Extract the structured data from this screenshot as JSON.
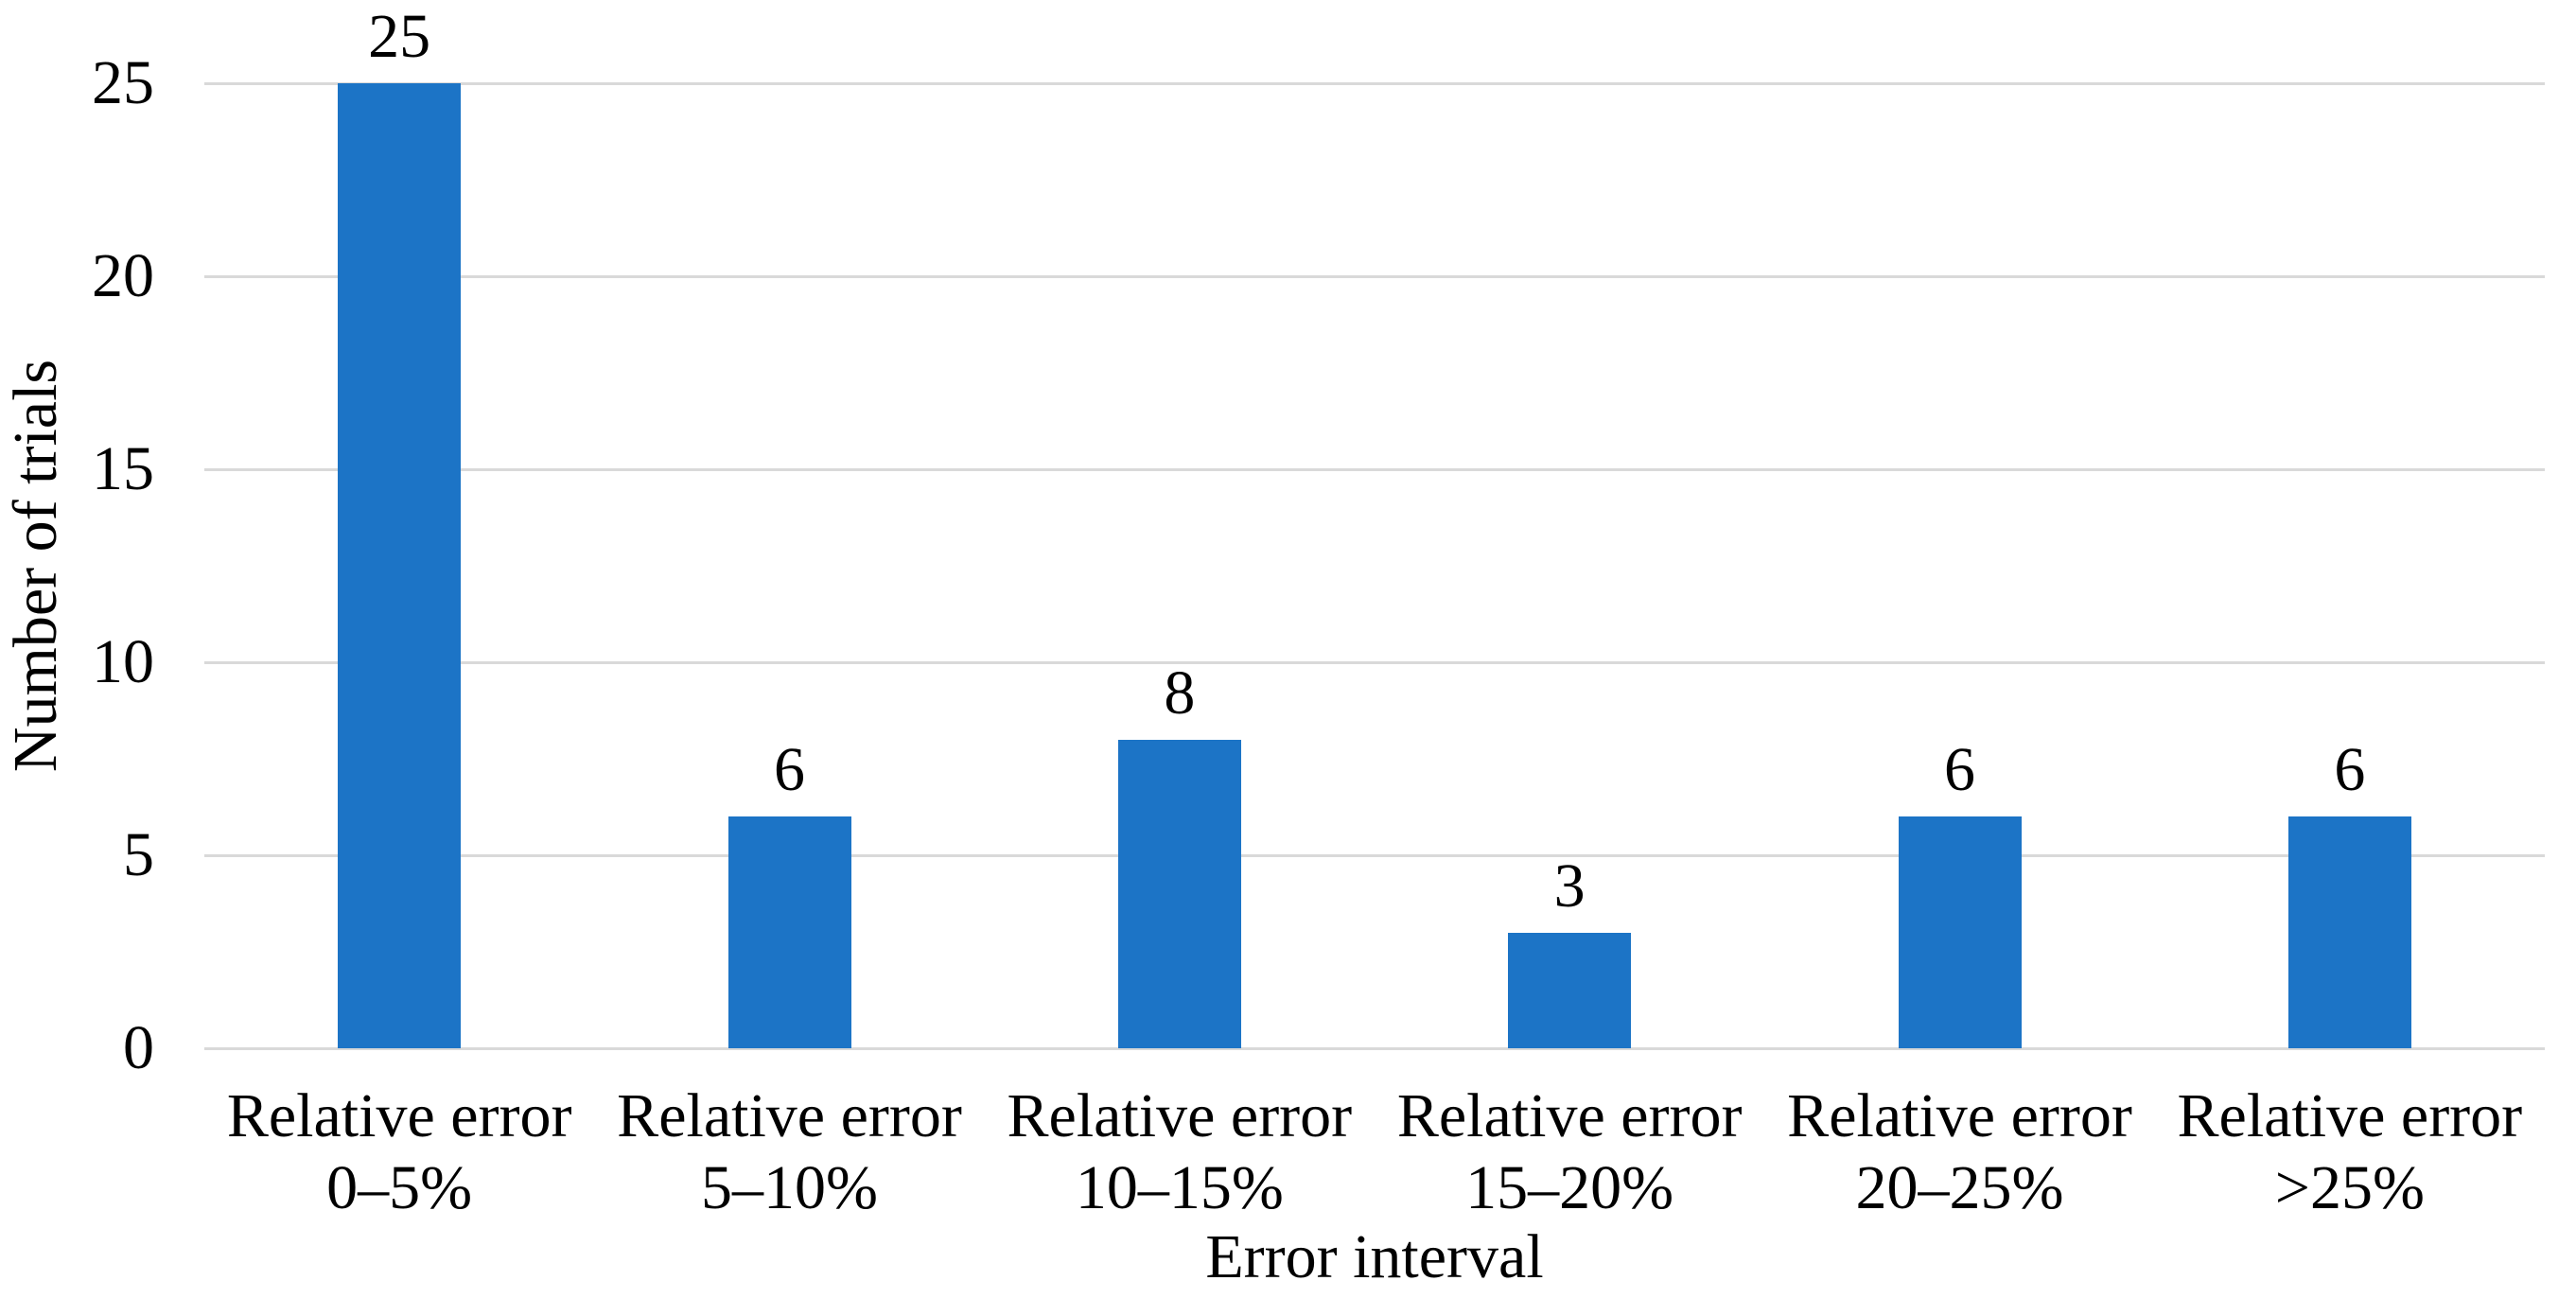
{
  "chart_data": {
    "type": "bar",
    "title": "",
    "xlabel": "Error interval",
    "ylabel": "Number of trials",
    "categories": [
      "Relative error 0–5%",
      "Relative error 5–10%",
      "Relative error 10–15%",
      "Relative error 15–20%",
      "Relative error 20–25%",
      "Relative error >25%"
    ],
    "label_lines": {
      "line1": "Relative error",
      "line2": [
        "0–5%",
        "5–10%",
        "10–15%",
        "15–20%",
        "20–25%",
        ">25%"
      ]
    },
    "values": [
      25,
      6,
      8,
      3,
      6,
      6
    ],
    "yticks": [
      0,
      5,
      10,
      15,
      20,
      25
    ],
    "ylim": [
      0,
      25
    ],
    "grid": true,
    "legend": "none",
    "data_labels": true,
    "colors": {
      "bar": "#1c74c6",
      "gridline": "#d9d9d9",
      "text": "#000000",
      "background": "#ffffff"
    }
  }
}
